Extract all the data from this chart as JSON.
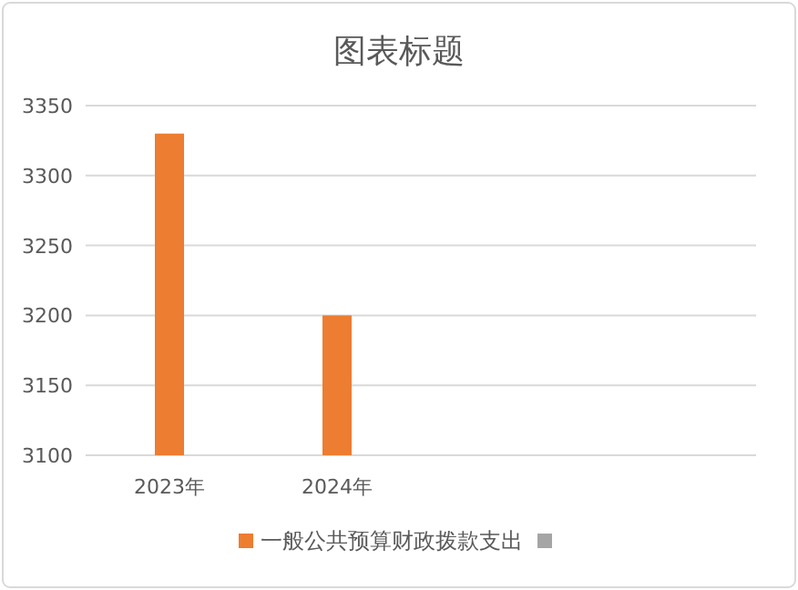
{
  "chart_data": {
    "type": "bar",
    "title": "图表标题",
    "categories": [
      "2023年",
      "2024年",
      null,
      null
    ],
    "series": [
      {
        "name": "一般公共预算财政拨款支出",
        "color": "#ed7d31",
        "values": [
          3330,
          3200,
          null,
          null
        ]
      },
      {
        "color": "#a5a5a5",
        "values": [
          null,
          null,
          null,
          null
        ]
      }
    ],
    "ylim": [
      3100,
      3350
    ],
    "yticks": [
      3100,
      3150,
      3200,
      3250,
      3300,
      3350
    ],
    "grid": "y",
    "legend": "bottom"
  }
}
